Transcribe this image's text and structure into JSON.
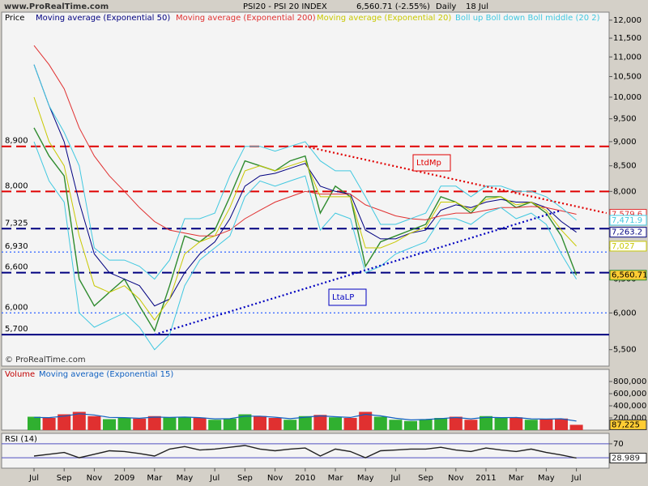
{
  "header": {
    "symbol": "PSI20 - PSI 20 INDEX",
    "quote": "6,560.71 (-2.55%)",
    "period": "Daily",
    "date": "18 Jul"
  },
  "watermark": "www.ProRealTime.com",
  "copyright": "© ProRealTime.com",
  "chart_data": [
    {
      "type": "line",
      "log": true,
      "categories": [
        "Jul",
        null,
        "Sep",
        null,
        "Nov",
        null,
        "2009",
        null,
        "Mar",
        null,
        "May",
        null,
        "Jul",
        null,
        "Sep",
        null,
        "Nov",
        null,
        "2010",
        null,
        "Mar",
        null,
        "May",
        null,
        "Jul",
        null,
        "Sep",
        null,
        "Nov",
        null,
        "2011",
        null,
        "Mar",
        null,
        "May",
        null,
        "Jul"
      ],
      "ylim": [
        5290,
        12230
      ],
      "yticks": [
        {
          "value": 12000,
          "label": "12,000"
        },
        {
          "value": 11500,
          "label": "11,500"
        },
        {
          "value": 11000,
          "label": "11,000"
        },
        {
          "value": 10500,
          "label": "10,500"
        },
        {
          "value": 10000,
          "label": "10,000"
        },
        {
          "value": 9500,
          "label": "9,500"
        },
        {
          "value": 9000,
          "label": "9,000"
        },
        {
          "value": 8500,
          "label": "8,500"
        },
        {
          "value": 8000,
          "label": "8,000"
        },
        {
          "value": 7500,
          "label": "7,500"
        },
        {
          "value": 7000,
          "label": "7,000"
        },
        {
          "value": 6500,
          "label": "6,500"
        },
        {
          "value": 6000,
          "label": "6,000"
        },
        {
          "value": 5500,
          "label": "5,500"
        }
      ],
      "series": [
        {
          "name": "Price",
          "color": "#2e8b2e",
          "label_fill": "#ffcc33",
          "values": [
            9300,
            8700,
            8300,
            6500,
            6100,
            6300,
            6500,
            6100,
            5750,
            6400,
            7200,
            7100,
            7300,
            7900,
            8600,
            8500,
            8400,
            8600,
            8700,
            7600,
            8100,
            7900,
            6700,
            7100,
            7200,
            7300,
            7400,
            7900,
            7800,
            7600,
            7900,
            7900,
            7700,
            7800,
            7600,
            7200,
            6560.71
          ],
          "last_label": "6,560.71"
        },
        {
          "name": "Moving average (Exponential 50)",
          "color": "#000080",
          "values": [
            10800,
            9800,
            9000,
            7800,
            6900,
            6600,
            6500,
            6400,
            6100,
            6200,
            6600,
            6900,
            7100,
            7500,
            8100,
            8300,
            8350,
            8450,
            8550,
            8100,
            8000,
            7950,
            7300,
            7150,
            7150,
            7250,
            7300,
            7650,
            7750,
            7700,
            7800,
            7850,
            7800,
            7800,
            7700,
            7450,
            7263.2
          ],
          "last_label": "7,263.2"
        },
        {
          "name": "Moving average (Exponential 200)",
          "color": "#e03030",
          "values": [
            11300,
            10800,
            10200,
            9300,
            8700,
            8300,
            8000,
            7700,
            7450,
            7300,
            7250,
            7200,
            7200,
            7300,
            7500,
            7650,
            7800,
            7900,
            8000,
            7950,
            7950,
            7950,
            7750,
            7650,
            7550,
            7500,
            7480,
            7550,
            7600,
            7600,
            7650,
            7700,
            7700,
            7720,
            7700,
            7640,
            7579.6
          ],
          "last_label": "7,579.6"
        },
        {
          "name": "Moving average (Exponential 20)",
          "color": "#c8c800",
          "values": [
            10000,
            9000,
            8500,
            7200,
            6400,
            6300,
            6400,
            6200,
            5900,
            6200,
            6900,
            7100,
            7200,
            7700,
            8400,
            8500,
            8400,
            8500,
            8600,
            7900,
            7900,
            7900,
            7000,
            7000,
            7100,
            7250,
            7350,
            7800,
            7800,
            7650,
            7850,
            7900,
            7750,
            7800,
            7650,
            7300,
            7027
          ],
          "last_label": "7,027"
        },
        {
          "name": "Boll up Boll down Boll middle (20 2)",
          "color": "#40c8e0",
          "values": [
            10800,
            9800,
            9200,
            8500,
            7000,
            6800,
            6800,
            6700,
            6500,
            6800,
            7500,
            7500,
            7600,
            8300,
            8900,
            8900,
            8800,
            8900,
            9000,
            8600,
            8400,
            8400,
            7900,
            7400,
            7400,
            7500,
            7600,
            8100,
            8100,
            7900,
            8100,
            8100,
            8000,
            8000,
            7900,
            7700,
            7471.9
          ],
          "lower": [
            9000,
            8200,
            7800,
            6000,
            5800,
            5900,
            6000,
            5800,
            5500,
            5700,
            6400,
            6800,
            7000,
            7200,
            7900,
            8200,
            8100,
            8200,
            8300,
            7300,
            7600,
            7500,
            6600,
            6700,
            6900,
            7000,
            7100,
            7500,
            7500,
            7400,
            7600,
            7700,
            7500,
            7600,
            7400,
            6900,
            6500
          ],
          "last_label": "7,471.9"
        }
      ],
      "hlines": [
        {
          "value": 8900,
          "label": "8,900",
          "color": "#e00000",
          "style": "dashed"
        },
        {
          "value": 8000,
          "label": "8,000",
          "color": "#e00000",
          "style": "dashed"
        },
        {
          "value": 7325,
          "label": "7,325",
          "color": "#000080",
          "style": "dashed"
        },
        {
          "value": 6930,
          "label": "6,930",
          "color": "#4070ff",
          "style": "dotted"
        },
        {
          "value": 6600,
          "label": "6,600",
          "color": "#000080",
          "style": "dashed"
        },
        {
          "value": 6000,
          "label": "6,000",
          "color": "#4070ff",
          "style": "dotted"
        },
        {
          "value": 5700,
          "label": "5,700",
          "color": "#000080",
          "style": "solid"
        }
      ],
      "trendlines": [
        {
          "label": "LtdMp",
          "color": "#e00000",
          "from": {
            "index": 18,
            "value": 8900
          },
          "to": {
            "index": 38,
            "value": 7600
          }
        },
        {
          "label": "LtaLP",
          "color": "#0000c0",
          "from": {
            "index": 8,
            "value": 5700
          },
          "to": {
            "index": 35,
            "value": 7650
          }
        }
      ]
    },
    {
      "type": "bar",
      "title": "Volume",
      "ylim": [
        0,
        1000000
      ],
      "yticks": [
        {
          "value": 200000,
          "label": "200,000"
        },
        {
          "value": 400000,
          "label": "400,000"
        },
        {
          "value": 600000,
          "label": "600,000"
        },
        {
          "value": 800000,
          "label": "800,000"
        }
      ],
      "series": [
        {
          "name": "Volume",
          "up_color": "#30b030",
          "down_color": "#e03030",
          "label_fill": "#ffcc33",
          "values": [
            220000,
            200000,
            260000,
            300000,
            230000,
            180000,
            200000,
            190000,
            230000,
            210000,
            220000,
            200000,
            170000,
            190000,
            260000,
            230000,
            200000,
            170000,
            230000,
            250000,
            210000,
            200000,
            300000,
            220000,
            170000,
            150000,
            180000,
            200000,
            220000,
            170000,
            230000,
            200000,
            210000,
            170000,
            180000,
            190000,
            87225
          ],
          "last_label": "87,225"
        },
        {
          "name": "Moving average (Exponential 15)",
          "color": "#1060c0",
          "values": [
            210000,
            205000,
            230000,
            270000,
            250000,
            210000,
            205000,
            195000,
            215000,
            210000,
            215000,
            205000,
            185000,
            188000,
            230000,
            230000,
            212000,
            188000,
            212000,
            235000,
            220000,
            208000,
            260000,
            235000,
            195000,
            168000,
            175000,
            190000,
            208000,
            185000,
            212000,
            205000,
            208000,
            185000,
            182000,
            186000,
            150000
          ]
        }
      ]
    },
    {
      "type": "line",
      "title": "RSI (14)",
      "ylim": [
        0,
        100
      ],
      "yticks": [
        70
      ],
      "levels": [
        70,
        30
      ],
      "level_color": "#5050c0",
      "series": [
        {
          "color": "#202020",
          "values": [
            35,
            40,
            45,
            30,
            40,
            50,
            48,
            42,
            35,
            55,
            62,
            52,
            55,
            60,
            65,
            55,
            50,
            55,
            58,
            35,
            55,
            48,
            30,
            50,
            52,
            55,
            55,
            60,
            52,
            48,
            58,
            52,
            48,
            55,
            45,
            38,
            28.989
          ],
          "last_label": "28.989"
        }
      ]
    }
  ]
}
